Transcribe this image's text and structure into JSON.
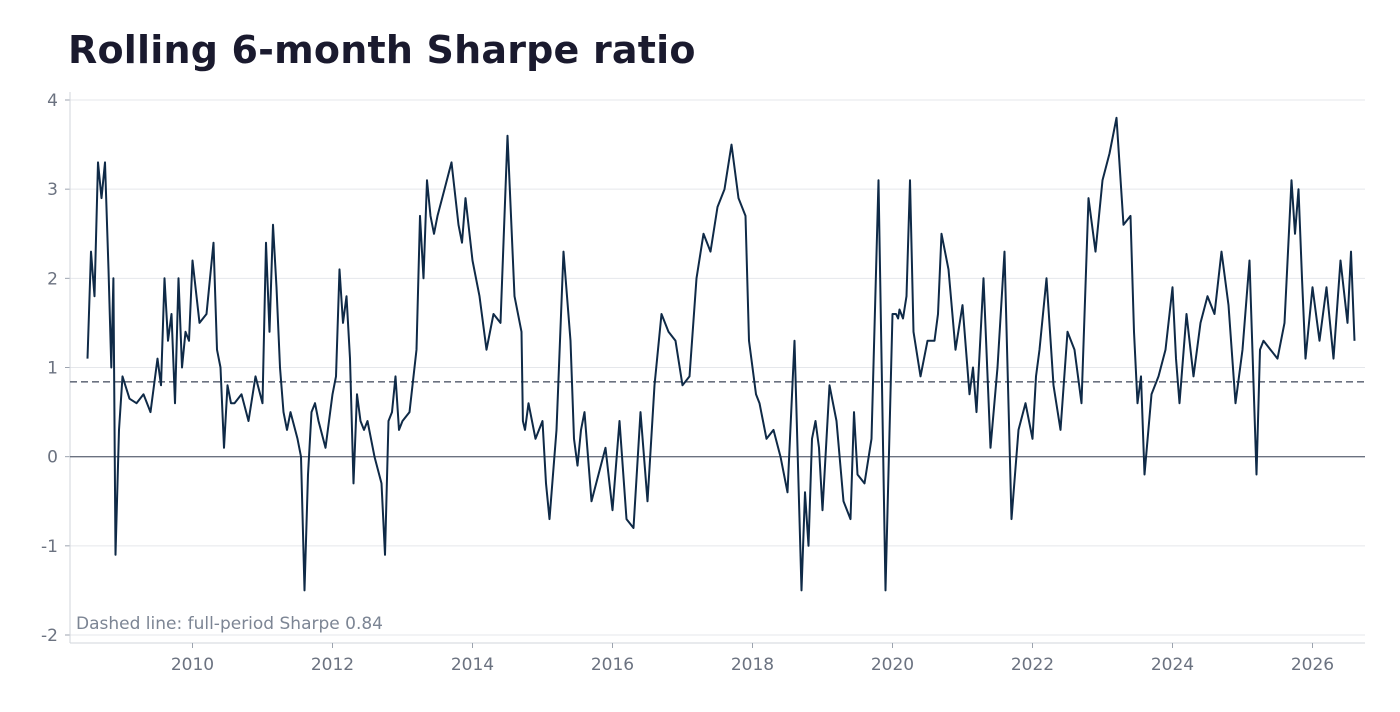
{
  "chart_data": {
    "type": "line",
    "title": "Rolling 6-month Sharpe ratio",
    "xlabel": "",
    "ylabel": "",
    "xlim": [
      2008.25,
      2026.75
    ],
    "ylim": [
      -2,
      4
    ],
    "yticks": [
      4,
      3,
      2,
      1,
      0,
      -1,
      -2
    ],
    "xticks": [
      2010,
      2012,
      2014,
      2016,
      2018,
      2020,
      2022,
      2024,
      2026
    ],
    "grid": "horizontal",
    "reference_lines": [
      {
        "y": 0,
        "style": "solid",
        "color": "#6b7280"
      },
      {
        "y": 0.84,
        "style": "dashed",
        "color": "#6b7280"
      }
    ],
    "annotation": "Dashed line: full-period Sharpe 0.84",
    "line_color": "#0f2a47",
    "series": [
      {
        "x": [
          2008.5,
          2008.55,
          2008.6,
          2008.65,
          2008.7,
          2008.75,
          2008.8,
          2008.84,
          2008.87,
          2008.9,
          2008.95,
          2009.0,
          2009.1,
          2009.2,
          2009.3,
          2009.4,
          2009.5,
          2009.55,
          2009.6,
          2009.65,
          2009.7,
          2009.75,
          2009.8,
          2009.85,
          2009.9,
          2009.95,
          2010.0,
          2010.1,
          2010.2,
          2010.3,
          2010.35,
          2010.4,
          2010.45,
          2010.5,
          2010.55,
          2010.6,
          2010.7,
          2010.8,
          2010.9,
          2011.0,
          2011.05,
          2011.1,
          2011.15,
          2011.2,
          2011.25,
          2011.3,
          2011.35,
          2011.4,
          2011.5,
          2011.55,
          2011.6,
          2011.65,
          2011.7,
          2011.75,
          2011.8,
          2011.9,
          2012.0,
          2012.05,
          2012.1,
          2012.15,
          2012.2,
          2012.25,
          2012.3,
          2012.35,
          2012.4,
          2012.45,
          2012.5,
          2012.6,
          2012.7,
          2012.75,
          2012.8,
          2012.85,
          2012.9,
          2012.95,
          2013.0,
          2013.1,
          2013.2,
          2013.25,
          2013.3,
          2013.35,
          2013.4,
          2013.45,
          2013.5,
          2013.6,
          2013.7,
          2013.8,
          2013.85,
          2013.9,
          2014.0,
          2014.1,
          2014.2,
          2014.3,
          2014.4,
          2014.5,
          2014.6,
          2014.7,
          2014.72,
          2014.75,
          2014.8,
          2014.9,
          2015.0,
          2015.05,
          2015.1,
          2015.2,
          2015.3,
          2015.35,
          2015.4,
          2015.45,
          2015.5,
          2015.55,
          2015.6,
          2015.65,
          2015.7,
          2015.8,
          2015.9,
          2016.0,
          2016.1,
          2016.2,
          2016.3,
          2016.4,
          2016.5,
          2016.6,
          2016.7,
          2016.8,
          2016.9,
          2017.0,
          2017.1,
          2017.2,
          2017.3,
          2017.4,
          2017.5,
          2017.6,
          2017.7,
          2017.8,
          2017.9,
          2017.95,
          2018.0,
          2018.05,
          2018.1,
          2018.15,
          2018.2,
          2018.3,
          2018.4,
          2018.5,
          2018.6,
          2018.7,
          2018.75,
          2018.8,
          2018.85,
          2018.9,
          2018.95,
          2019.0,
          2019.1,
          2019.2,
          2019.3,
          2019.4,
          2019.45,
          2019.5,
          2019.6,
          2019.7,
          2019.8,
          2019.9,
          2020.0,
          2020.05,
          2020.08,
          2020.1,
          2020.15,
          2020.2,
          2020.25,
          2020.3,
          2020.4,
          2020.5,
          2020.6,
          2020.65,
          2020.7,
          2020.8,
          2020.9,
          2021.0,
          2021.1,
          2021.15,
          2021.2,
          2021.3,
          2021.4,
          2021.5,
          2021.6,
          2021.7,
          2021.8,
          2021.9,
          2022.0,
          2022.05,
          2022.1,
          2022.2,
          2022.3,
          2022.4,
          2022.5,
          2022.6,
          2022.7,
          2022.8,
          2022.9,
          2023.0,
          2023.1,
          2023.2,
          2023.3,
          2023.4,
          2023.45,
          2023.5,
          2023.55,
          2023.6,
          2023.7,
          2023.8,
          2023.9,
          2024.0,
          2024.05,
          2024.1,
          2024.2,
          2024.3,
          2024.4,
          2024.5,
          2024.6,
          2024.7,
          2024.8,
          2024.9,
          2025.0,
          2025.1,
          2025.2,
          2025.25,
          2025.3,
          2025.4,
          2025.5,
          2025.6,
          2025.7,
          2025.75,
          2025.8,
          2025.85,
          2025.9,
          2026.0,
          2026.1,
          2026.2,
          2026.3,
          2026.4,
          2026.5,
          2026.55,
          2026.6
        ],
        "y": [
          1.1,
          2.3,
          1.8,
          3.3,
          2.9,
          3.3,
          2.1,
          1.0,
          2.0,
          -1.1,
          0.3,
          0.9,
          0.65,
          0.6,
          0.7,
          0.5,
          1.1,
          0.8,
          2.0,
          1.3,
          1.6,
          0.6,
          2.0,
          1.0,
          1.4,
          1.3,
          2.2,
          1.5,
          1.6,
          2.4,
          1.2,
          1.0,
          0.1,
          0.8,
          0.6,
          0.6,
          0.7,
          0.4,
          0.9,
          0.6,
          2.4,
          1.4,
          2.6,
          1.9,
          1.0,
          0.5,
          0.3,
          0.5,
          0.2,
          0.0,
          -1.5,
          -0.2,
          0.5,
          0.6,
          0.4,
          0.1,
          0.7,
          0.9,
          2.1,
          1.5,
          1.8,
          1.1,
          -0.3,
          0.7,
          0.4,
          0.3,
          0.4,
          0.0,
          -0.3,
          -1.1,
          0.4,
          0.5,
          0.9,
          0.3,
          0.4,
          0.5,
          1.2,
          2.7,
          2.0,
          3.1,
          2.7,
          2.5,
          2.7,
          3.0,
          3.3,
          2.6,
          2.4,
          2.9,
          2.2,
          1.8,
          1.2,
          1.6,
          1.5,
          3.6,
          1.8,
          1.4,
          0.4,
          0.3,
          0.6,
          0.2,
          0.4,
          -0.3,
          -0.7,
          0.3,
          2.3,
          1.8,
          1.3,
          0.2,
          -0.1,
          0.3,
          0.5,
          0.0,
          -0.5,
          -0.2,
          0.1,
          -0.6,
          0.4,
          -0.7,
          -0.8,
          0.5,
          -0.5,
          0.8,
          1.6,
          1.4,
          1.3,
          0.8,
          0.9,
          2.0,
          2.5,
          2.3,
          2.8,
          3.0,
          3.5,
          2.9,
          2.7,
          1.3,
          1.0,
          0.7,
          0.6,
          0.4,
          0.2,
          0.3,
          0.0,
          -0.4,
          1.3,
          -1.5,
          -0.4,
          -1.0,
          0.2,
          0.4,
          0.1,
          -0.6,
          0.8,
          0.4,
          -0.5,
          -0.7,
          0.5,
          -0.2,
          -0.3,
          0.2,
          3.1,
          -1.5,
          1.6,
          1.6,
          1.55,
          1.65,
          1.55,
          1.8,
          3.1,
          1.4,
          0.9,
          1.3,
          1.3,
          1.6,
          2.5,
          2.1,
          1.2,
          1.7,
          0.7,
          1.0,
          0.5,
          2.0,
          0.1,
          1.0,
          2.3,
          -0.7,
          0.3,
          0.6,
          0.2,
          0.9,
          1.2,
          2.0,
          0.8,
          0.3,
          1.4,
          1.2,
          0.6,
          2.9,
          2.3,
          3.1,
          3.4,
          3.8,
          2.6,
          2.7,
          1.4,
          0.6,
          0.9,
          -0.2,
          0.7,
          0.9,
          1.2,
          1.9,
          1.1,
          0.6,
          1.6,
          0.9,
          1.5,
          1.8,
          1.6,
          2.3,
          1.7,
          0.6,
          1.2,
          2.2,
          -0.2,
          1.2,
          1.3,
          1.2,
          1.1,
          1.5,
          3.1,
          2.5,
          3.0,
          2.0,
          1.1,
          1.9,
          1.3,
          1.9,
          1.1,
          2.2,
          1.5,
          2.3,
          1.3
        ]
      }
    ]
  }
}
